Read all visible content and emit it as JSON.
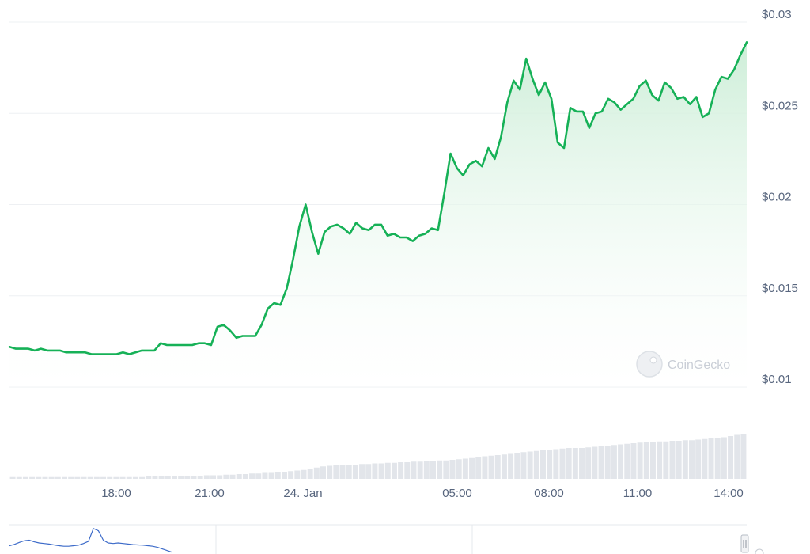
{
  "watermark": {
    "text": "CoinGecko"
  },
  "colors": {
    "line": "#16b157",
    "area_top": "#cdeed8",
    "grid": "#eef0f3",
    "volume": "#e2e5ea",
    "label": "#58667e",
    "navigator_line": "#3d6bc9"
  },
  "chart_data": {
    "type": "area",
    "y_ticks": [
      "$0.03",
      "$0.025",
      "$0.02",
      "$0.015",
      "$0.01"
    ],
    "ylim": [
      0.01,
      0.03
    ],
    "x_ticks": [
      "18:00",
      "21:00",
      "24. Jan",
      "05:00",
      "08:00",
      "11:00",
      "14:00"
    ],
    "grid": true,
    "series": [
      {
        "values": [
          0.0122,
          0.0121,
          0.0121,
          0.0121,
          0.012,
          0.0121,
          0.012,
          0.012,
          0.012,
          0.0119,
          0.0119,
          0.0119,
          0.0119,
          0.0118,
          0.0118,
          0.0118,
          0.0118,
          0.0118,
          0.0119,
          0.0118,
          0.0119,
          0.012,
          0.012,
          0.012,
          0.0124,
          0.0123,
          0.0123,
          0.0123,
          0.0123,
          0.0123,
          0.0124,
          0.0124,
          0.0123,
          0.0133,
          0.0134,
          0.0131,
          0.0127,
          0.0128,
          0.0128,
          0.0128,
          0.0134,
          0.0143,
          0.0146,
          0.0145,
          0.0154,
          0.017,
          0.0188,
          0.02,
          0.0185,
          0.0173,
          0.0185,
          0.0188,
          0.0189,
          0.0187,
          0.0184,
          0.019,
          0.0187,
          0.0186,
          0.0189,
          0.0189,
          0.0183,
          0.0184,
          0.0182,
          0.0182,
          0.018,
          0.0183,
          0.0184,
          0.0187,
          0.0186,
          0.0206,
          0.0228,
          0.022,
          0.0216,
          0.0222,
          0.0224,
          0.0221,
          0.0231,
          0.0225,
          0.0237,
          0.0256,
          0.0268,
          0.0263,
          0.028,
          0.0269,
          0.026,
          0.0267,
          0.0258,
          0.0234,
          0.0231,
          0.0253,
          0.0251,
          0.0251,
          0.0242,
          0.025,
          0.0251,
          0.0258,
          0.0256,
          0.0252,
          0.0255,
          0.0258,
          0.0265,
          0.0268,
          0.026,
          0.0257,
          0.0267,
          0.0264,
          0.0258,
          0.0259,
          0.0255,
          0.0259,
          0.0248,
          0.025,
          0.0263,
          0.027,
          0.0269,
          0.0274,
          0.0282,
          0.0289
        ]
      }
    ],
    "volume": [
      0.03,
      0.03,
      0.03,
      0.03,
      0.03,
      0.03,
      0.03,
      0.03,
      0.03,
      0.03,
      0.03,
      0.03,
      0.03,
      0.03,
      0.03,
      0.03,
      0.03,
      0.03,
      0.03,
      0.03,
      0.03,
      0.04,
      0.04,
      0.04,
      0.04,
      0.04,
      0.05,
      0.05,
      0.05,
      0.05,
      0.06,
      0.06,
      0.06,
      0.07,
      0.07,
      0.08,
      0.08,
      0.09,
      0.09,
      0.1,
      0.1,
      0.11,
      0.12,
      0.13,
      0.14,
      0.15,
      0.17,
      0.19,
      0.21,
      0.22,
      0.23,
      0.23,
      0.24,
      0.24,
      0.25,
      0.25,
      0.26,
      0.26,
      0.27,
      0.27,
      0.28,
      0.28,
      0.29,
      0.29,
      0.3,
      0.3,
      0.31,
      0.31,
      0.32,
      0.33,
      0.34,
      0.35,
      0.36,
      0.38,
      0.39,
      0.4,
      0.41,
      0.42,
      0.44,
      0.45,
      0.46,
      0.47,
      0.48,
      0.49,
      0.5,
      0.51,
      0.52,
      0.52,
      0.52,
      0.53,
      0.54,
      0.55,
      0.56,
      0.57,
      0.58,
      0.59,
      0.6,
      0.61,
      0.62,
      0.62,
      0.63,
      0.63,
      0.64,
      0.64,
      0.65,
      0.65,
      0.66,
      0.67,
      0.68,
      0.69,
      0.7,
      0.72,
      0.74,
      0.76
    ],
    "navigator": [
      0.3,
      0.35,
      0.42,
      0.48,
      0.5,
      0.44,
      0.4,
      0.38,
      0.36,
      0.33,
      0.3,
      0.28,
      0.28,
      0.3,
      0.32,
      0.38,
      0.46,
      0.92,
      0.84,
      0.5,
      0.4,
      0.38,
      0.4,
      0.38,
      0.36,
      0.34,
      0.33,
      0.32,
      0.3,
      0.28,
      0.24,
      0.18,
      0.12,
      0.06
    ]
  }
}
